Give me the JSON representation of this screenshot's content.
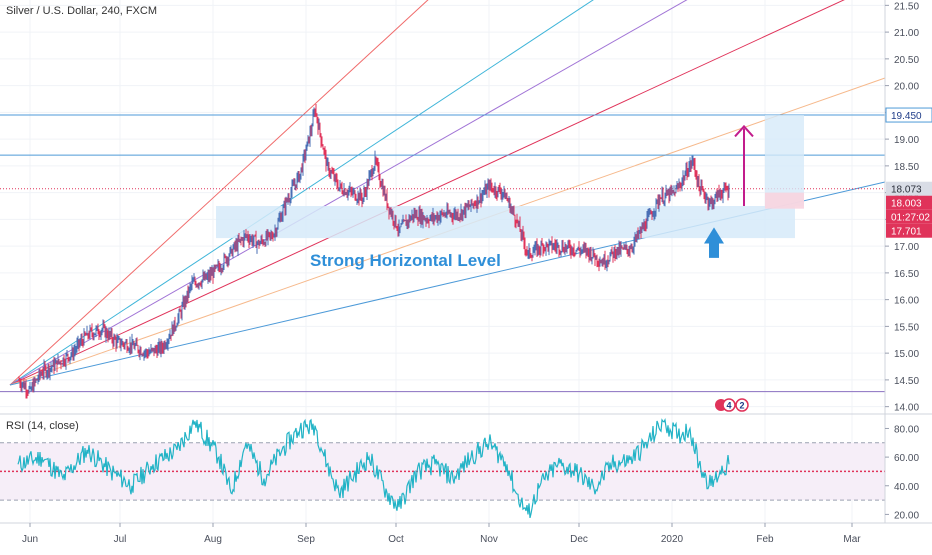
{
  "chart_data": [
    {
      "type": "line",
      "title": "Silver / U.S. Dollar, 240, FXCM",
      "price_axis": {
        "range": [
          13.9,
          21.6
        ],
        "ticks": [
          "14.00",
          "14.50",
          "15.00",
          "15.50",
          "16.00",
          "16.50",
          "17.00",
          "17.50",
          "18.00",
          "18.50",
          "19.00",
          "19.50",
          "20.00",
          "20.50",
          "21.00",
          "21.50"
        ]
      },
      "x_axis": {
        "ticks": [
          "Jun",
          "Jul",
          "Aug",
          "Sep",
          "Oct",
          "Nov",
          "Dec",
          "2020",
          "Feb",
          "Mar"
        ],
        "tick_dates": [
          "2019-06-01",
          "2019-07-01",
          "2019-08-01",
          "2019-09-01",
          "2019-10-01",
          "2019-11-01",
          "2019-12-01",
          "2020-01-01",
          "2020-02-01",
          "2020-03-01"
        ],
        "range": [
          "2019-05-22",
          "2020-03-12"
        ]
      },
      "series": [
        {
          "values": [
            [
              "2019-05-28",
              14.5
            ],
            [
              "2019-06-01",
              14.3
            ],
            [
              "2019-06-05",
              14.65
            ],
            [
              "2019-06-10",
              14.8
            ],
            [
              "2019-06-15",
              15.0
            ],
            [
              "2019-06-20",
              15.35
            ],
            [
              "2019-06-25",
              15.45
            ],
            [
              "2019-06-30",
              15.2
            ],
            [
              "2019-07-05",
              15.15
            ],
            [
              "2019-07-10",
              15.0
            ],
            [
              "2019-07-15",
              15.1
            ],
            [
              "2019-07-20",
              15.6
            ],
            [
              "2019-07-25",
              16.3
            ],
            [
              "2019-07-30",
              16.4
            ],
            [
              "2019-08-03",
              16.6
            ],
            [
              "2019-08-07",
              16.9
            ],
            [
              "2019-08-12",
              17.2
            ],
            [
              "2019-08-16",
              17.05
            ],
            [
              "2019-08-21",
              17.2
            ],
            [
              "2019-08-26",
              17.9
            ],
            [
              "2019-08-30",
              18.35
            ],
            [
              "2019-09-03",
              19.25
            ],
            [
              "2019-09-04",
              19.55
            ],
            [
              "2019-09-08",
              18.5
            ],
            [
              "2019-09-12",
              18.1
            ],
            [
              "2019-09-16",
              18.0
            ],
            [
              "2019-09-20",
              17.9
            ],
            [
              "2019-09-24",
              18.6
            ],
            [
              "2019-09-28",
              17.8
            ],
            [
              "2019-10-02",
              17.3
            ],
            [
              "2019-10-07",
              17.6
            ],
            [
              "2019-10-12",
              17.5
            ],
            [
              "2019-10-17",
              17.6
            ],
            [
              "2019-10-22",
              17.6
            ],
            [
              "2019-10-27",
              17.8
            ],
            [
              "2019-11-01",
              18.1
            ],
            [
              "2019-11-06",
              18.0
            ],
            [
              "2019-11-10",
              17.5
            ],
            [
              "2019-11-14",
              16.85
            ],
            [
              "2019-11-19",
              17.0
            ],
            [
              "2019-11-24",
              17.0
            ],
            [
              "2019-11-29",
              16.95
            ],
            [
              "2019-12-04",
              16.9
            ],
            [
              "2019-12-09",
              16.7
            ],
            [
              "2019-12-13",
              16.9
            ],
            [
              "2019-12-18",
              16.95
            ],
            [
              "2019-12-23",
              17.4
            ],
            [
              "2019-12-28",
              17.9
            ],
            [
              "2020-01-02",
              18.0
            ],
            [
              "2020-01-06",
              18.4
            ],
            [
              "2020-01-08",
              18.6
            ],
            [
              "2020-01-10",
              18.1
            ],
            [
              "2020-01-14",
              17.8
            ],
            [
              "2020-01-17",
              18.0
            ],
            [
              "2020-01-20",
              18.06
            ]
          ]
        }
      ],
      "last_values": {
        "last_price": "18.073",
        "bid": "18.003",
        "countdown": "01:27:02",
        "level": "17.701",
        "target": "19.450"
      },
      "horizontal_levels": [
        19.45,
        18.7,
        18.073,
        14.28
      ],
      "annotations": [
        "Strong Horizontal Level"
      ],
      "event_badges": [
        "4",
        "2"
      ],
      "colors": {
        "candle_up": "#4a6fb5",
        "candle_down": "#e0335a",
        "zone": "#d6eaf9",
        "target_arrow": "#c21c8c",
        "support_arrow": "#2f8fd8",
        "price_line": "#e0335a"
      }
    },
    {
      "type": "line",
      "title": "RSI (14, close)",
      "y_axis": {
        "range": [
          14,
          88
        ],
        "ticks": [
          "20.00",
          "40.00",
          "60.00",
          "80.00"
        ]
      },
      "bands": {
        "upper": 70,
        "middle": 50,
        "lower": 30
      },
      "series": [
        {
          "values": [
            [
              "2019-05-28",
              55
            ],
            [
              "2019-06-05",
              60
            ],
            [
              "2019-06-12",
              45
            ],
            [
              "2019-06-20",
              65
            ],
            [
              "2019-06-28",
              50
            ],
            [
              "2019-07-05",
              40
            ],
            [
              "2019-07-12",
              55
            ],
            [
              "2019-07-20",
              65
            ],
            [
              "2019-07-26",
              85
            ],
            [
              "2019-08-03",
              60
            ],
            [
              "2019-08-07",
              35
            ],
            [
              "2019-08-12",
              70
            ],
            [
              "2019-08-18",
              45
            ],
            [
              "2019-08-24",
              65
            ],
            [
              "2019-08-30",
              80
            ],
            [
              "2019-09-04",
              82
            ],
            [
              "2019-09-08",
              55
            ],
            [
              "2019-09-12",
              35
            ],
            [
              "2019-09-16",
              45
            ],
            [
              "2019-09-22",
              60
            ],
            [
              "2019-09-28",
              35
            ],
            [
              "2019-10-02",
              25
            ],
            [
              "2019-10-08",
              50
            ],
            [
              "2019-10-14",
              55
            ],
            [
              "2019-10-20",
              45
            ],
            [
              "2019-10-26",
              60
            ],
            [
              "2019-11-01",
              70
            ],
            [
              "2019-11-07",
              55
            ],
            [
              "2019-11-10",
              35
            ],
            [
              "2019-11-14",
              20
            ],
            [
              "2019-11-18",
              40
            ],
            [
              "2019-11-24",
              55
            ],
            [
              "2019-11-30",
              50
            ],
            [
              "2019-12-06",
              38
            ],
            [
              "2019-12-12",
              55
            ],
            [
              "2019-12-18",
              58
            ],
            [
              "2019-12-24",
              70
            ],
            [
              "2019-12-29",
              85
            ],
            [
              "2020-01-03",
              75
            ],
            [
              "2020-01-07",
              80
            ],
            [
              "2020-01-10",
              55
            ],
            [
              "2020-01-14",
              40
            ],
            [
              "2020-01-17",
              50
            ],
            [
              "2020-01-20",
              55
            ]
          ]
        }
      ]
    }
  ]
}
